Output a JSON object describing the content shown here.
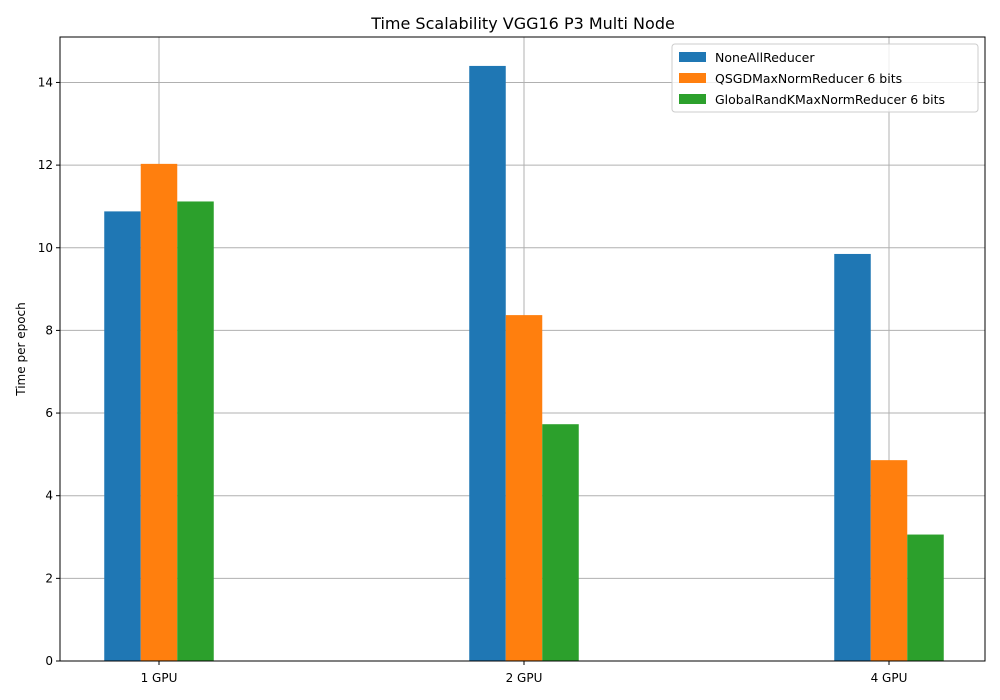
{
  "chart_data": {
    "type": "bar",
    "title": "Time Scalability VGG16 P3 Multi Node",
    "xlabel": "",
    "ylabel": "Time per epoch",
    "categories": [
      "1 GPU",
      "2 GPU",
      "4 GPU"
    ],
    "ylim": [
      0,
      15.1
    ],
    "yticks": [
      0,
      2,
      4,
      6,
      8,
      10,
      12,
      14
    ],
    "grid": true,
    "legend_position": "top-right",
    "series": [
      {
        "name": "NoneAllReducer",
        "color": "#1f77b4",
        "values": [
          10.88,
          14.4,
          9.85
        ]
      },
      {
        "name": "QSGDMaxNormReducer 6 bits",
        "color": "#ff7f0e",
        "values": [
          12.03,
          8.37,
          4.86
        ]
      },
      {
        "name": "GlobalRandKMaxNormReducer 6 bits",
        "color": "#2ca02c",
        "values": [
          11.12,
          5.73,
          3.06
        ]
      }
    ]
  }
}
